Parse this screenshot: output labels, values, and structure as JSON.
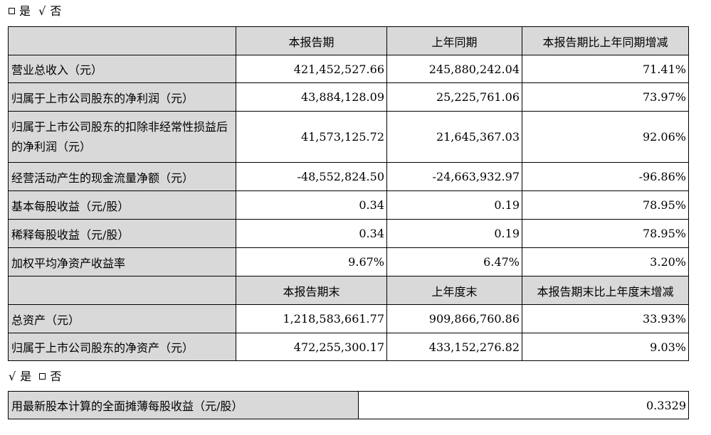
{
  "choice1": {
    "box_label": "是",
    "check_label": "否"
  },
  "headers1": {
    "c1": "本报告期",
    "c2": "上年同期",
    "c3": "本报告期比上年同期增减"
  },
  "rows1": [
    {
      "label": "营业总收入（元）",
      "v1": "421,452,527.66",
      "v2": "245,880,242.04",
      "v3": "71.41%"
    },
    {
      "label": "归属于上市公司股东的净利润（元）",
      "v1": "43,884,128.09",
      "v2": "25,225,761.06",
      "v3": "73.97%"
    },
    {
      "label": "归属于上市公司股东的扣除非经常性损益后的净利润（元）",
      "v1": "41,573,125.72",
      "v2": "21,645,367.03",
      "v3": "92.06%"
    },
    {
      "label": "经营活动产生的现金流量净额（元）",
      "v1": "-48,552,824.50",
      "v2": "-24,663,932.97",
      "v3": "-96.86%"
    },
    {
      "label": "基本每股收益（元/股）",
      "v1": "0.34",
      "v2": "0.19",
      "v3": "78.95%"
    },
    {
      "label": "稀释每股收益（元/股）",
      "v1": "0.34",
      "v2": "0.19",
      "v3": "78.95%"
    },
    {
      "label": "加权平均净资产收益率",
      "v1": "9.67%",
      "v2": "6.47%",
      "v3": "3.20%"
    }
  ],
  "headers2": {
    "c1": "本报告期末",
    "c2": "上年度末",
    "c3": "本报告期末比上年度末增减"
  },
  "rows2": [
    {
      "label": "总资产（元）",
      "v1": "1,218,583,661.77",
      "v2": "909,866,760.86",
      "v3": "33.93%"
    },
    {
      "label": "归属于上市公司股东的净资产（元）",
      "v1": "472,255,300.17",
      "v2": "433,152,276.82",
      "v3": "9.03%"
    }
  ],
  "choice2": {
    "check_label": "是",
    "box_label": "否"
  },
  "eps": {
    "label": "用最新股本计算的全面摊薄每股收益（元/股）",
    "value": "0.3329"
  }
}
